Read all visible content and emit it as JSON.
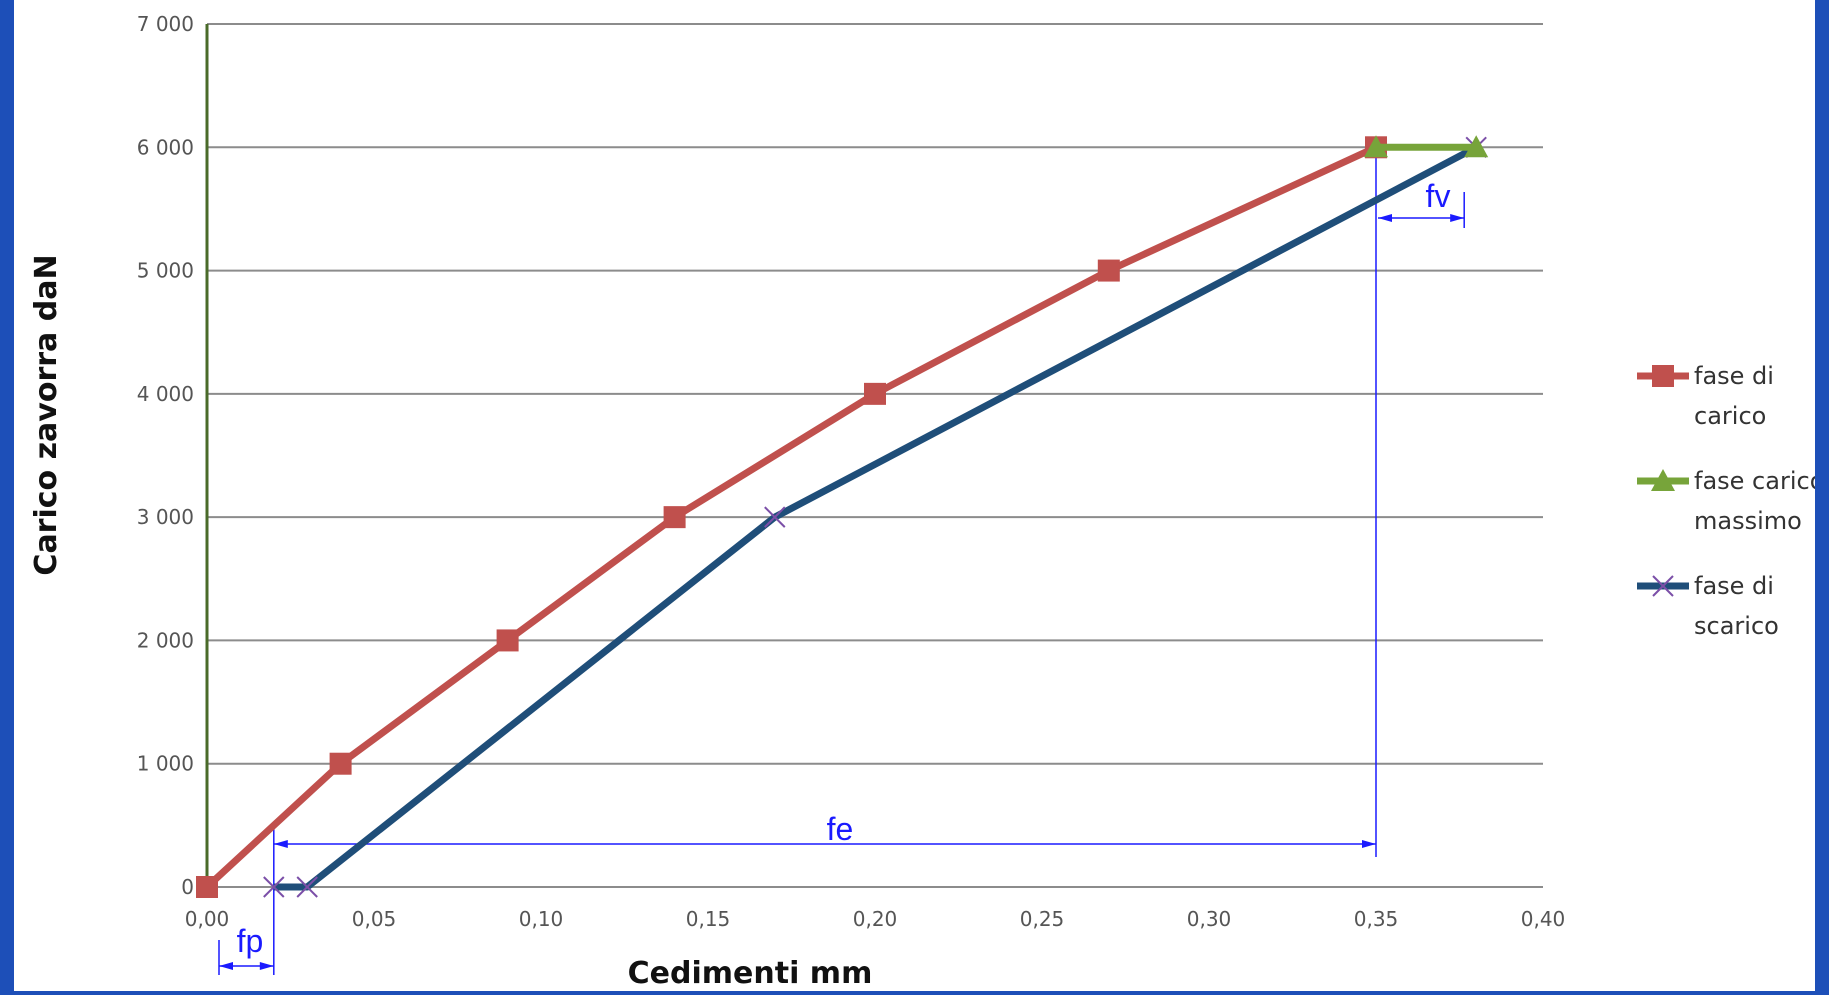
{
  "chart_data": {
    "type": "line",
    "title": "",
    "xlabel": "Cedimenti mm",
    "ylabel": "Carico zavorra  daN",
    "xlim": [
      0,
      0.4
    ],
    "ylim": [
      0,
      7000
    ],
    "x_ticks": [
      "0,00",
      "0,05",
      "0,10",
      "0,15",
      "0,20",
      "0,25",
      "0,30",
      "0,35",
      "0,40"
    ],
    "y_ticks": [
      "0",
      "1 000",
      "2 000",
      "3 000",
      "4 000",
      "5 000",
      "6 000",
      "7 000"
    ],
    "grid": "horizontal",
    "legend_position": "right",
    "series": [
      {
        "name": "fase di carico",
        "color": "#c0504d",
        "marker": "square",
        "x": [
          0,
          0.04,
          0.09,
          0.14,
          0.2,
          0.27,
          0.35
        ],
        "y": [
          0,
          1000,
          2000,
          3000,
          4000,
          5000,
          6000
        ]
      },
      {
        "name": "fase carico massimo",
        "color": "#77a43a",
        "marker": "triangle",
        "x": [
          0.35,
          0.38
        ],
        "y": [
          6000,
          6000
        ]
      },
      {
        "name": "fase di scarico",
        "color": "#1f4e79",
        "marker": "x",
        "marker_color": "#7b4fa8",
        "x": [
          0.38,
          0.17,
          0.03,
          0.02
        ],
        "y": [
          6000,
          3000,
          0,
          0
        ]
      }
    ],
    "legend": [
      {
        "line1": "fase di",
        "line2": "carico"
      },
      {
        "line1": "fase carico",
        "line2": "massimo"
      },
      {
        "line1": "fase di",
        "line2": "scarico"
      }
    ],
    "annotations": [
      {
        "label": "fp",
        "x_from": 0,
        "x_to": 0.02
      },
      {
        "label": "fe",
        "x_from": 0.02,
        "x_to": 0.35
      },
      {
        "label": "fv",
        "x_from": 0.35,
        "x_to": 0.38
      }
    ],
    "annotation_color": "#1a1aff"
  }
}
